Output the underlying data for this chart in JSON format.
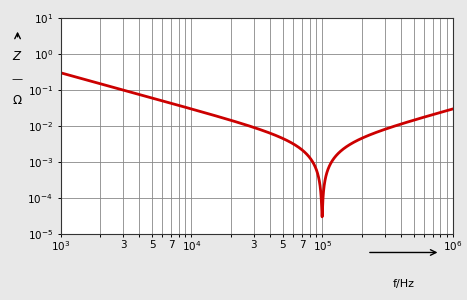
{
  "xlabel": "f/Hz",
  "xmin": 1000.0,
  "xmax": 1000000.0,
  "ymin": 1e-05,
  "ymax": 10.0,
  "R": 3e-05,
  "L": 4.8e-09,
  "C": 0.00053,
  "line_color": "#cc0000",
  "line_width": 2.0,
  "bg_color": "#e8e8e8",
  "plot_bg": "#ffffff",
  "grid_major_color": "#888888",
  "grid_minor_color": "#bbbbbb"
}
